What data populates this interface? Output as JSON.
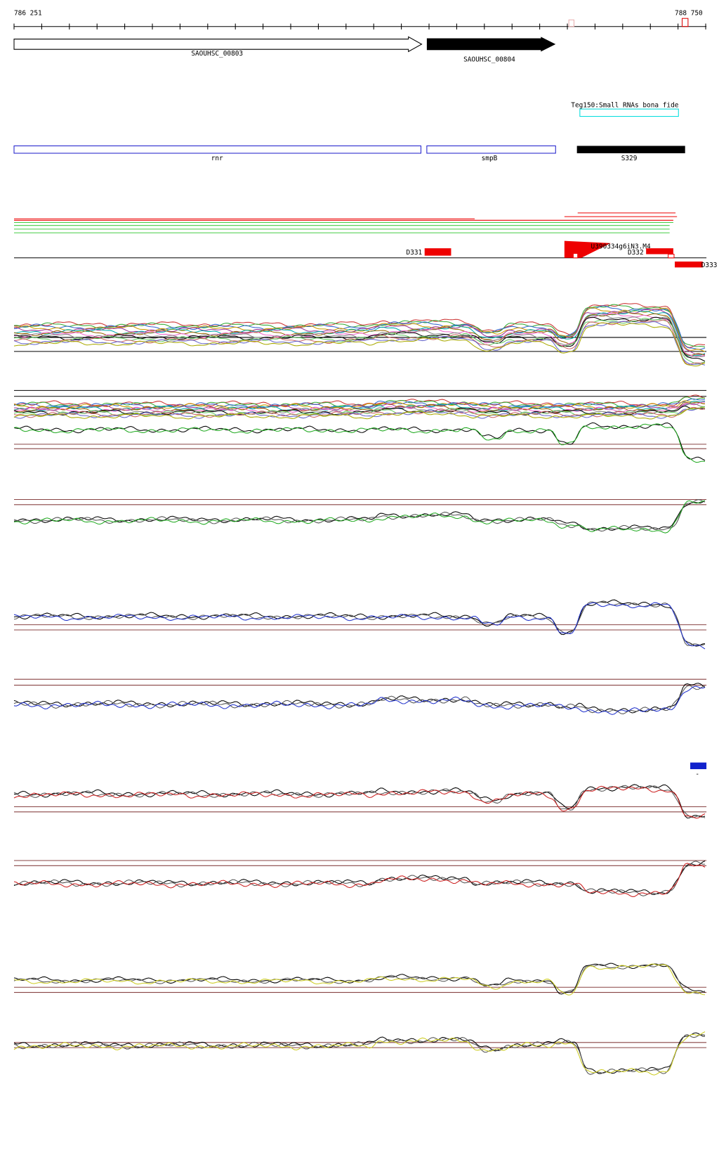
{
  "ruler": {
    "start": "786 251",
    "end": "788 750"
  },
  "genes": [
    "SAOUHSC_00803",
    "SAOUHSC_00804"
  ],
  "small_rna": {
    "label": "Teg150:Small RNAs bona fide"
  },
  "features": [
    "rnr",
    "smpB",
    "S329"
  ],
  "regions": [
    "D331",
    "U390334g6iN3.M4",
    "D332",
    "D333"
  ],
  "legend": {
    "label": "-"
  }
}
